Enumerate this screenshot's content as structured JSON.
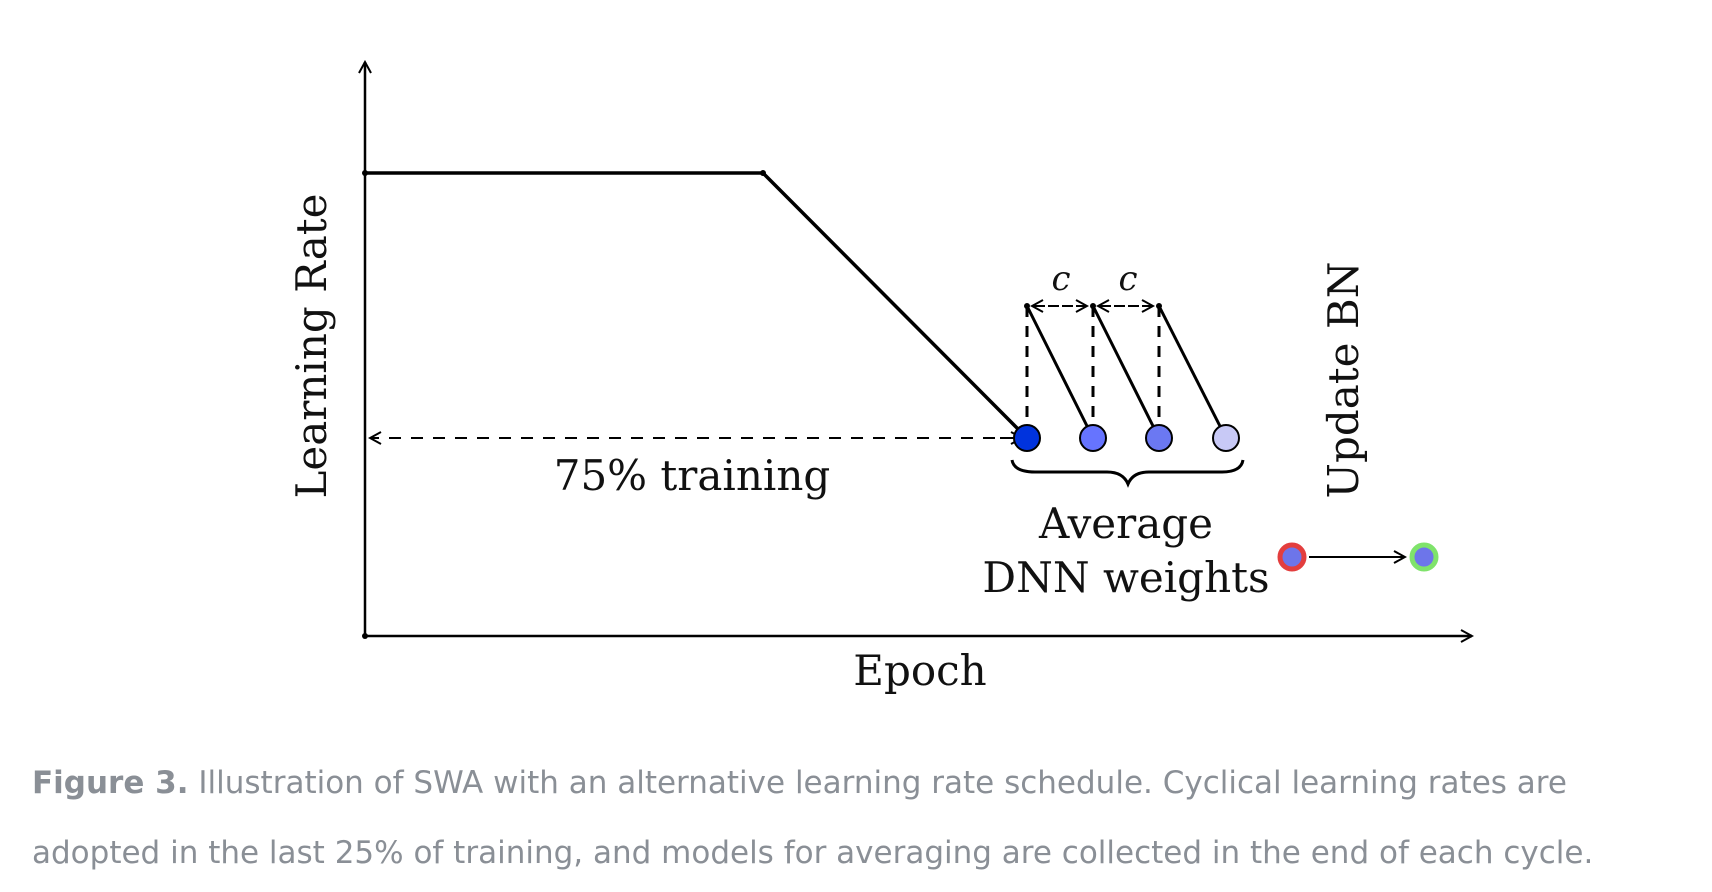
{
  "diagram": {
    "y_axis_label": "Learning Rate",
    "x_axis_label": "Epoch",
    "training_label": "75% training",
    "cycle_labels": [
      "c",
      "c"
    ],
    "average_label_line1": "Average",
    "average_label_line2": "DNN weights",
    "update_bn_label": "Update BN",
    "colors": {
      "line": "#000000",
      "weight_dot_1": "#0033dd",
      "weight_dot_2": "#6674ff",
      "weight_dot_3": "#6b78f2",
      "weight_dot_4": "#c8c9f6",
      "averaged_dot_fill": "#6d75ea",
      "averaged_dot_ring": "#e33e3e",
      "updated_dot_ring": "#7fe36b"
    }
  },
  "caption": {
    "label": "Figure 3.",
    "text": "Illustration of SWA with an alternative learning rate schedule. Cyclical learning rates are adopted in the last 25% of training, and models for averaging are collected in the end of each cycle."
  }
}
